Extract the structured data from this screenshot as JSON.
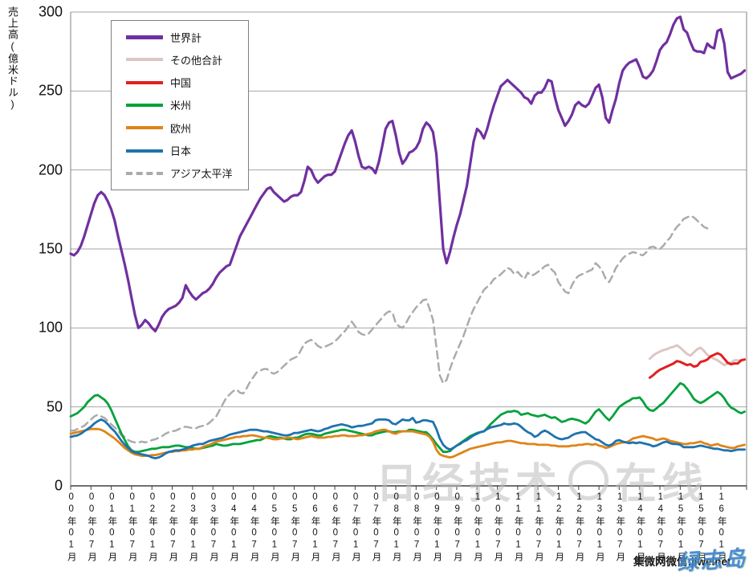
{
  "y_axis": {
    "title": "売上高(億米ドル)",
    "ticks": [
      0,
      50,
      100,
      150,
      200,
      250,
      300
    ],
    "max": 300
  },
  "x_axis": {
    "labels": [
      "00年01月",
      "00年07月",
      "01年01月",
      "01年07月",
      "02年01月",
      "02年07月",
      "03年01月",
      "03年07月",
      "04年01月",
      "04年07月",
      "05年01月",
      "05年07月",
      "06年01月",
      "06年07月",
      "07年01月",
      "07年07月",
      "08年01月",
      "08年07月",
      "09年01月",
      "09年07月",
      "10年01月",
      "10年07月",
      "11年01月",
      "11年07月",
      "12年01月",
      "12年07月",
      "13年01月",
      "13年07月",
      "14年01月",
      "14年07月",
      "15年01月",
      "15年07月",
      "16年01月"
    ]
  },
  "legend": {
    "items": [
      {
        "label": "世界計",
        "color": "#7030a0",
        "dashed": false
      },
      {
        "label": "その他合計",
        "color": "#ddc6c4",
        "dashed": false
      },
      {
        "label": "中国",
        "color": "#e01f1f",
        "dashed": false
      },
      {
        "label": "米州",
        "color": "#00a23c",
        "dashed": false
      },
      {
        "label": "欧州",
        "color": "#df8418",
        "dashed": false
      },
      {
        "label": "日本",
        "color": "#1f72ae",
        "dashed": false
      },
      {
        "label": "アジア太平洋",
        "color": "#ababab",
        "dashed": true
      }
    ]
  },
  "watermarks": {
    "center_text": "日经技术在线",
    "center_left": "日经技术",
    "center_right": "在线",
    "jiweinet": "集微网微信:jiweinet",
    "overlay": "绿志岛"
  },
  "chart_data": {
    "type": "line",
    "title": "",
    "xlabel": "",
    "ylabel": "売上高(億米ドル)",
    "ylim": [
      0,
      300
    ],
    "grid": true,
    "legend_position": "top-left-inside",
    "x_start": "2000年1月",
    "x_unit": "month",
    "x_tick_every_months": 6,
    "series": [
      {
        "name": "その他合計",
        "color": "#ddc6c4",
        "dashed": false,
        "width": 3,
        "start": 171,
        "values": [
          80.5,
          82.5,
          84,
          85,
          86,
          86.5,
          87.5,
          88,
          89,
          87.5,
          85.5,
          83.5,
          82.5,
          84.5,
          86.5,
          87.5,
          85.5,
          83,
          81.5,
          80.5,
          79.5,
          78,
          76.5,
          77.5,
          78,
          79.5,
          79.5,
          79
        ]
      },
      {
        "name": "アジア太平洋",
        "color": "#ababab",
        "dashed": true,
        "width": 2.5,
        "start": 0,
        "values": [
          35,
          35,
          36,
          37,
          38,
          40,
          42,
          44,
          45,
          44,
          43,
          41,
          39,
          37,
          35,
          32,
          31,
          29,
          28,
          27.5,
          27.5,
          28,
          27.5,
          28,
          29,
          29.5,
          30.5,
          31.5,
          33,
          34,
          34.5,
          35,
          36,
          37,
          37.5,
          37,
          36.5,
          36.5,
          37.5,
          38,
          38.5,
          40,
          42,
          44,
          48,
          52,
          56,
          58,
          60,
          61,
          59,
          58.5,
          62,
          66,
          69,
          72,
          73,
          74,
          74,
          72,
          71,
          72,
          74,
          76,
          78,
          80,
          81,
          82,
          86,
          90,
          91.5,
          92.5,
          91,
          88.5,
          87.5,
          88,
          89,
          90,
          91.5,
          93.5,
          96,
          98,
          101,
          104,
          101,
          97.5,
          96,
          95.5,
          96.5,
          99,
          101.5,
          104,
          106.5,
          109,
          110.5,
          110,
          103,
          101,
          100,
          103,
          107,
          110,
          113,
          115,
          117.5,
          118,
          112,
          105,
          88,
          70,
          65,
          67,
          74,
          80,
          85,
          90,
          95,
          101,
          107,
          112,
          116,
          120,
          124,
          126,
          128,
          131,
          132,
          134,
          136,
          138,
          137,
          134,
          135.5,
          133,
          131,
          135,
          133,
          134,
          135.5,
          137,
          139,
          140,
          137,
          135,
          129,
          126,
          123,
          122,
          127,
          131,
          133,
          134,
          135,
          136,
          137,
          141,
          139,
          136,
          131,
          129,
          133,
          138,
          141,
          144,
          146,
          147,
          148,
          147.5,
          146.5,
          146,
          148,
          151,
          151.5,
          150.5,
          150,
          152,
          155,
          157,
          161,
          164,
          166,
          169,
          170,
          171,
          170,
          168,
          166,
          164,
          163
        ]
      },
      {
        "name": "米州",
        "color": "#00a23c",
        "dashed": false,
        "width": 2.8,
        "start": 0,
        "values": [
          44,
          45,
          46,
          48,
          50,
          53,
          55,
          57,
          57.5,
          56,
          54.5,
          52,
          48,
          43,
          38,
          33,
          29,
          25,
          22.5,
          21.5,
          21.5,
          22,
          22.5,
          23,
          23.5,
          23.5,
          24,
          24.5,
          24.5,
          24.5,
          25,
          25.5,
          25.5,
          25,
          24.5,
          24.5,
          24,
          23.5,
          23.5,
          24,
          24.5,
          25,
          25.5,
          26.5,
          26,
          25.5,
          25.5,
          26,
          26.5,
          26.5,
          26.5,
          27,
          27.5,
          28,
          28.5,
          29,
          29,
          30,
          31,
          31.5,
          31,
          30.5,
          30.5,
          30,
          29.5,
          29.5,
          30.5,
          30.5,
          31.5,
          32.5,
          33,
          33,
          32.5,
          32,
          32,
          33,
          33.5,
          34,
          34.5,
          35,
          35.5,
          35.5,
          35,
          34.5,
          34,
          33.5,
          33,
          32.5,
          32,
          32,
          33,
          33.5,
          34,
          34.5,
          34.5,
          34,
          34,
          34.5,
          34.5,
          34.5,
          35.5,
          35.5,
          35,
          34.5,
          34,
          34,
          32,
          29.5,
          26.5,
          24,
          21.5,
          21.5,
          22,
          24,
          25.5,
          27,
          28.5,
          30,
          31.5,
          32.5,
          33.5,
          34,
          34.5,
          36.5,
          39,
          41,
          43,
          45,
          46,
          47,
          47,
          47.5,
          47,
          45,
          45.5,
          46,
          45,
          44.5,
          44,
          44.5,
          45,
          44,
          43,
          43.5,
          42,
          40.5,
          41,
          42,
          42.5,
          42,
          41.5,
          40.5,
          39.5,
          41,
          44,
          47,
          48.5,
          46,
          43.5,
          41.5,
          44,
          47,
          50,
          51.5,
          53,
          54,
          55.5,
          55.5,
          56,
          53.5,
          50,
          48,
          47.5,
          49,
          51,
          52.5,
          55,
          57.5,
          60,
          62.5,
          65,
          64,
          61.5,
          58.5,
          55,
          53.5,
          52.5,
          53.5,
          55,
          56.5,
          58,
          59.5,
          58,
          55.5,
          52,
          49.5,
          48.5,
          47,
          46,
          47
        ]
      },
      {
        "name": "欧州",
        "color": "#df8418",
        "dashed": false,
        "width": 2.8,
        "start": 0,
        "values": [
          33,
          33.5,
          34,
          34.5,
          35,
          35.5,
          36,
          36,
          36,
          35.5,
          34.5,
          33,
          31.5,
          30,
          28,
          26,
          24,
          22.5,
          21,
          20,
          19.5,
          19,
          19,
          19,
          19.5,
          19.5,
          20,
          20.5,
          21,
          21.5,
          21.5,
          22,
          22,
          22.5,
          22.5,
          23,
          23,
          23.5,
          23.5,
          24.5,
          25.5,
          26,
          27,
          28,
          28.5,
          29,
          29.5,
          30,
          30.5,
          31,
          31,
          31.5,
          31.5,
          32,
          32,
          31.5,
          31,
          30.5,
          30.5,
          30,
          29.5,
          29.5,
          30,
          30,
          30.5,
          30.5,
          30,
          29.5,
          30,
          30.5,
          31,
          31.5,
          31,
          30.5,
          30.5,
          30.5,
          31,
          31,
          31.5,
          31.5,
          32,
          32,
          31.5,
          31.5,
          31.5,
          32,
          32,
          32.5,
          33,
          33.5,
          34.5,
          35,
          35.5,
          35.5,
          34.5,
          33.5,
          33,
          34,
          34.5,
          34.5,
          34.5,
          34.5,
          34,
          33.5,
          33,
          32.5,
          31,
          28,
          23,
          20,
          19,
          18.5,
          18,
          18.5,
          19.5,
          20.5,
          21.5,
          22.5,
          23.5,
          24,
          24.5,
          25,
          25.5,
          26,
          26.5,
          27,
          27.5,
          27.5,
          28,
          28.5,
          28.5,
          28,
          27.5,
          27,
          27,
          26.5,
          26.5,
          26.5,
          26,
          26,
          26,
          26,
          25.5,
          25.5,
          25,
          25,
          25,
          25,
          25.5,
          25.5,
          26,
          26,
          26.5,
          26.5,
          26,
          26.5,
          25.5,
          25,
          24,
          24.5,
          25.5,
          26.5,
          27,
          27.5,
          27.5,
          28.5,
          30,
          30.5,
          31,
          31.5,
          31,
          30.5,
          30,
          29,
          29.5,
          30,
          29.5,
          28.5,
          28,
          27.5,
          27,
          26.5,
          26.5,
          27,
          27,
          27.5,
          28,
          27,
          26.5,
          25.5,
          26,
          26.5,
          25.5,
          25,
          24.5,
          24,
          24,
          25,
          25.5,
          26
        ]
      },
      {
        "name": "日本",
        "color": "#1f72ae",
        "dashed": false,
        "width": 2.8,
        "start": 0,
        "values": [
          31,
          31.5,
          32,
          33,
          34.5,
          36,
          37.5,
          39.5,
          41,
          42,
          41,
          39,
          36.5,
          34.5,
          31.5,
          28.5,
          26,
          24,
          22,
          21,
          20.5,
          20,
          19.5,
          19,
          18,
          17.5,
          18,
          19,
          20.5,
          21.5,
          22,
          22.5,
          22.5,
          23,
          23.5,
          24.5,
          25.5,
          26,
          26.5,
          26.5,
          27.5,
          28.5,
          29,
          29.5,
          30,
          30.5,
          31.5,
          32.5,
          33,
          33.5,
          34,
          34.5,
          35,
          35.5,
          35.5,
          35.5,
          35,
          34.5,
          34.5,
          34,
          33.5,
          33,
          32.5,
          32,
          32,
          32.5,
          33.5,
          33.5,
          34,
          34.5,
          35,
          35.5,
          35,
          34.5,
          35,
          36,
          36.5,
          37.5,
          38,
          38.5,
          39,
          38.5,
          38,
          37,
          37.5,
          38,
          38,
          38.5,
          39,
          39.5,
          41.5,
          42,
          42,
          42,
          41.5,
          39.5,
          39,
          40.5,
          42,
          41.5,
          41.5,
          43,
          40,
          40.5,
          41.5,
          41.5,
          41,
          40.5,
          36,
          30,
          26,
          24,
          23,
          24,
          25.5,
          26.5,
          28,
          29,
          30.5,
          32,
          33,
          34,
          34.5,
          36,
          37,
          37.5,
          38,
          38.5,
          39.5,
          39,
          39,
          39.5,
          39,
          37.5,
          35.5,
          34,
          33,
          31,
          32,
          34,
          35,
          34,
          32.5,
          31,
          30,
          29.5,
          30,
          30.5,
          32,
          33,
          33.5,
          34,
          34,
          32.5,
          31,
          29.5,
          29,
          27.5,
          26,
          25.5,
          26.5,
          28.5,
          29,
          28,
          27.5,
          27,
          27.5,
          27,
          27.5,
          27,
          26.5,
          26,
          25,
          25.5,
          26.5,
          27.5,
          28,
          27,
          26.5,
          26.5,
          26,
          24.5,
          24.5,
          24.5,
          24.5,
          25,
          25.5,
          25,
          24.5,
          24,
          23.5,
          23.5,
          23,
          22.5,
          22.5,
          22,
          22.5,
          23,
          23,
          23
        ]
      },
      {
        "name": "中国",
        "color": "#e01f1f",
        "dashed": false,
        "width": 3,
        "start": 171,
        "values": [
          68.5,
          70,
          72,
          73.5,
          74.5,
          75.5,
          76.5,
          77.5,
          79,
          78.5,
          77.5,
          76.5,
          77,
          75.5,
          76,
          78.5,
          79,
          80,
          82,
          83,
          84,
          83,
          80.5,
          78,
          77,
          77.5,
          77.5,
          79.5,
          80
        ]
      },
      {
        "name": "世界計",
        "color": "#7030a0",
        "dashed": false,
        "width": 3.2,
        "start": 0,
        "values": [
          147,
          146,
          148,
          152,
          158,
          165,
          172,
          179,
          184,
          186,
          184,
          180,
          175,
          168,
          158,
          149,
          140,
          130,
          119,
          108,
          100,
          102,
          105,
          103,
          100,
          98,
          102,
          107,
          110,
          112,
          113,
          114,
          116,
          119,
          127,
          123,
          120,
          118,
          120,
          122,
          123,
          125,
          128,
          132,
          135,
          137,
          139,
          140,
          146,
          152,
          158,
          162,
          166,
          170,
          174,
          178,
          182,
          185,
          188,
          189,
          186,
          184,
          182,
          180,
          181,
          183,
          184,
          184,
          186,
          193,
          202,
          200,
          195,
          192,
          194,
          196,
          197,
          197,
          199,
          205,
          211,
          217,
          222,
          225,
          218,
          209,
          202,
          201,
          202,
          201,
          198,
          205,
          215,
          226,
          230,
          231,
          222,
          211,
          204,
          207,
          211,
          212,
          214,
          218,
          226,
          230,
          228,
          224,
          210,
          180,
          150,
          141,
          148,
          157,
          165,
          172,
          181,
          190,
          204,
          218,
          226,
          224,
          220,
          226,
          234,
          241,
          247,
          253,
          255,
          257,
          255,
          253,
          251,
          249,
          246,
          245,
          242,
          247,
          249,
          249,
          252,
          257,
          256,
          246,
          238,
          233,
          228,
          231,
          235,
          241,
          243,
          241,
          240,
          242,
          247,
          252,
          254,
          246,
          233,
          230,
          238,
          245,
          255,
          263,
          266,
          268,
          269,
          270,
          265,
          259,
          258,
          260,
          263,
          269,
          276,
          279,
          281,
          286,
          292,
          296,
          297,
          289,
          287,
          281,
          276,
          275,
          275,
          274,
          280,
          278,
          277,
          288,
          289,
          280,
          262,
          258,
          259,
          260,
          261,
          263
        ]
      }
    ]
  }
}
